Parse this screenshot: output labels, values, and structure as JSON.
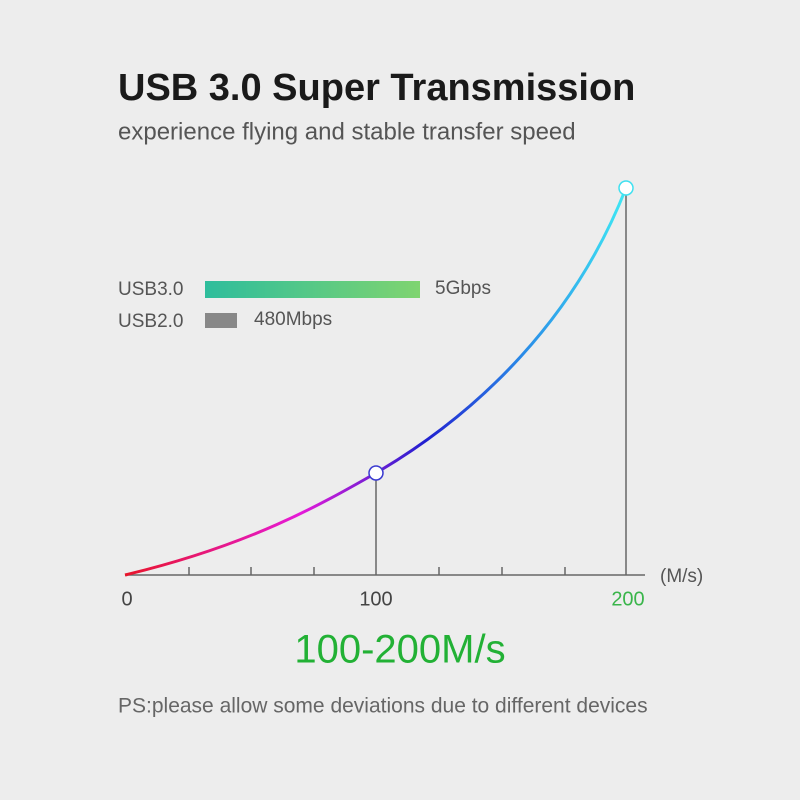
{
  "header": {
    "title": "USB 3.0 Super Transmission",
    "subtitle": "experience flying and stable transfer speed"
  },
  "legend": [
    {
      "name": "USB3.0",
      "label": "5Gbps"
    },
    {
      "name": "USB2.0",
      "label": "480Mbps"
    }
  ],
  "axis": {
    "ticks": [
      "0",
      "100",
      "200"
    ],
    "unit": "(M/s)"
  },
  "speed": "100-200M/s",
  "note": "PS:please allow some deviations due to different devices"
}
